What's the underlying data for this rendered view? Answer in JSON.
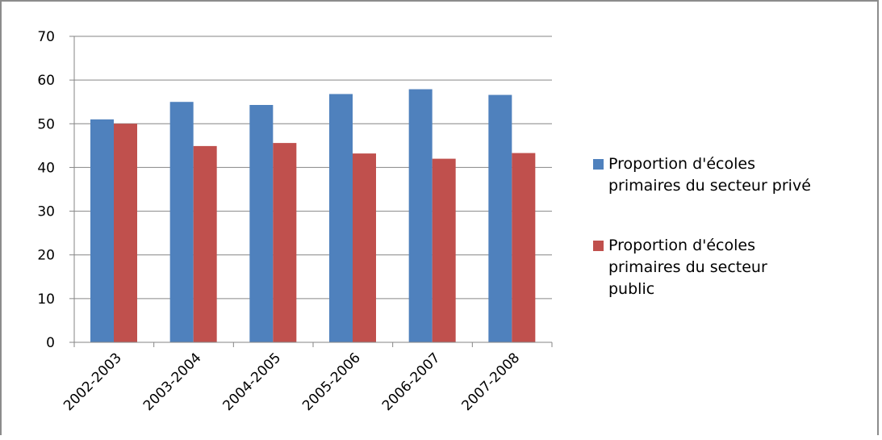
{
  "chart_data": {
    "type": "bar",
    "categories": [
      "2002-2003",
      "2003-2004",
      "2004-2005",
      "2005-2006",
      "2006-2007",
      "2007-2008"
    ],
    "series": [
      {
        "name": "Proportion d'écoles primaires du secteur privé",
        "name_lines": [
          "Proportion d'écoles",
          "primaires du secteur privé"
        ],
        "color": "#4f81bd",
        "values": [
          51,
          55,
          54.3,
          56.8,
          57.9,
          56.6
        ]
      },
      {
        "name": "Proportion d'écoles primaires du secteur public",
        "name_lines": [
          "Proportion d'écoles",
          "primaires du secteur",
          "public"
        ],
        "color": "#c0504d",
        "values": [
          50,
          44.9,
          45.6,
          43.2,
          42,
          43.3
        ]
      }
    ],
    "y_ticks": [
      0,
      10,
      20,
      30,
      40,
      50,
      60,
      70
    ],
    "ylim": [
      0,
      70
    ],
    "grid": true,
    "legend_position": "right",
    "title": "",
    "xlabel": "",
    "ylabel": ""
  }
}
